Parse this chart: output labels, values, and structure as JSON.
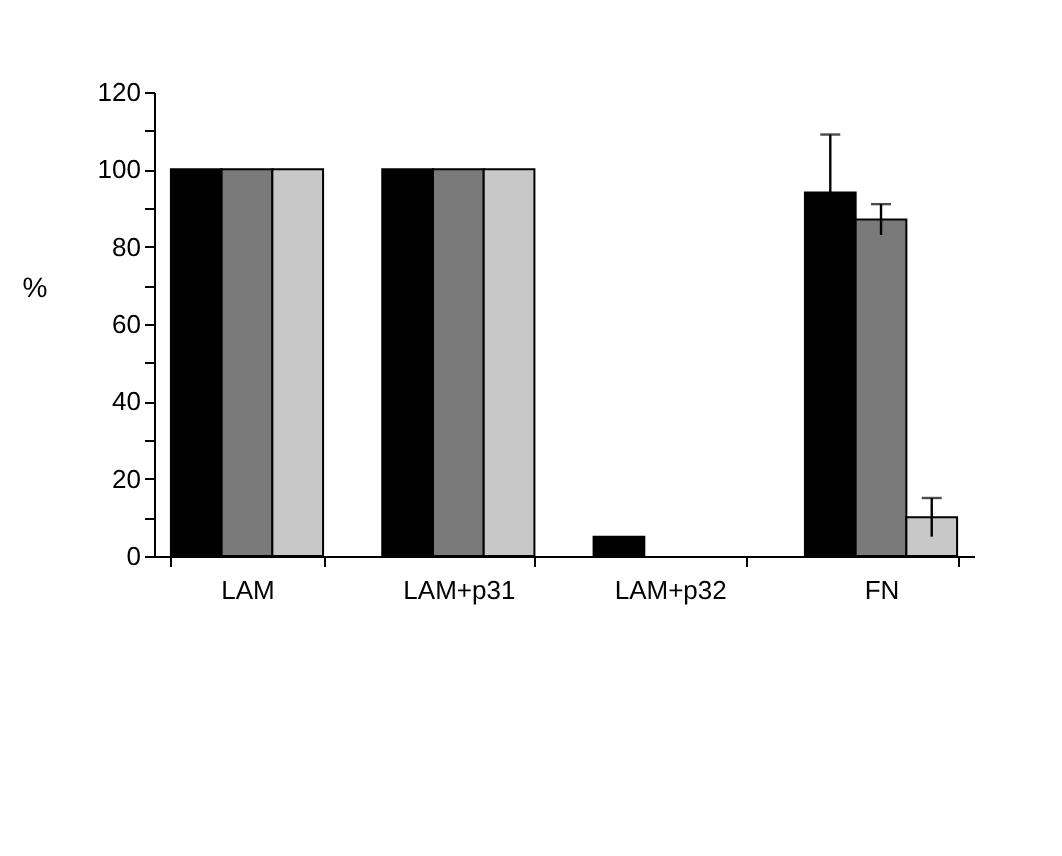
{
  "chart_data": {
    "type": "bar",
    "ylabel": "%",
    "categories": [
      "LAM",
      "LAM+p31",
      "LAM+p32",
      "FN"
    ],
    "series": [
      {
        "color": "#000000",
        "values": [
          100,
          100,
          5,
          94
        ],
        "errors": [
          null,
          null,
          null,
          15
        ]
      },
      {
        "color": "#7a7a7a",
        "values": [
          100,
          100,
          0,
          87
        ],
        "errors": [
          null,
          null,
          null,
          4
        ]
      },
      {
        "color": "#c8c8c8",
        "values": [
          100,
          100,
          0,
          10
        ],
        "errors": [
          null,
          null,
          null,
          5
        ]
      }
    ],
    "ylim": [
      0,
      120
    ],
    "yticks": [
      0,
      {
        "value": 10,
        "label": null
      },
      20,
      {
        "value": 30,
        "label": null
      },
      40,
      {
        "value": 50,
        "label": null
      },
      60,
      {
        "value": 70,
        "label": null
      },
      80,
      {
        "value": 90,
        "label": null
      },
      100,
      {
        "value": 110,
        "label": null
      },
      120
    ],
    "grid": false,
    "legend": false
  }
}
